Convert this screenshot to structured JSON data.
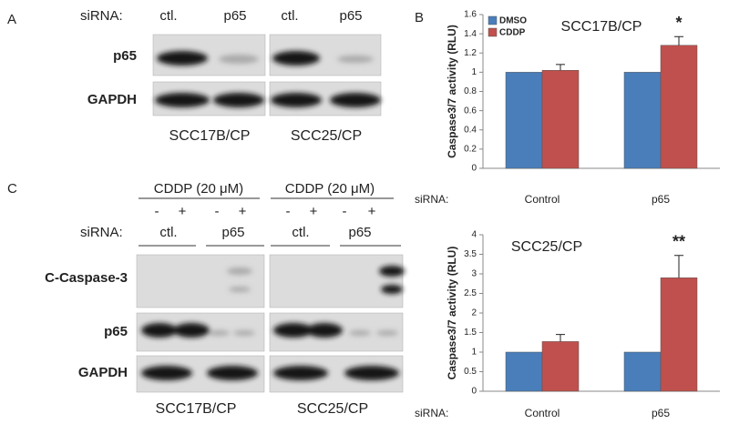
{
  "panel_a": {
    "label": "A",
    "sirna_label": "siRNA:",
    "lanes": [
      "ctl.",
      "p65",
      "ctl.",
      "p65"
    ],
    "rows": [
      "p65",
      "GAPDH"
    ],
    "cell_lines": [
      "SCC17B/CP",
      "SCC25/CP"
    ]
  },
  "panel_b": {
    "label": "B"
  },
  "panel_c": {
    "label": "C",
    "treatment": [
      "CDDP (20 μM)",
      "CDDP (20 μM)"
    ],
    "signs": [
      "-",
      "+",
      "-",
      "+",
      "-",
      "+",
      "-",
      "+"
    ],
    "sirna_label": "siRNA:",
    "lanes": [
      "ctl.",
      "p65",
      "ctl.",
      "p65"
    ],
    "rows": [
      "C-Caspase-3",
      "p65",
      "GAPDH"
    ],
    "cell_lines": [
      "SCC17B/CP",
      "SCC25/CP"
    ]
  },
  "chart_data": [
    {
      "type": "bar",
      "title": "SCC17B/CP",
      "ylabel": "Caspase3/7 activity (RLU)",
      "xlabel": "siRNA:",
      "categories": [
        "Control",
        "p65"
      ],
      "series": [
        {
          "name": "DMSO",
          "color": "#4a7ebb",
          "values": [
            1,
            1
          ]
        },
        {
          "name": "CDDP",
          "color": "#c0504d",
          "values": [
            1.02,
            1.28
          ],
          "errors": [
            0.06,
            0.09
          ]
        }
      ],
      "ylim": [
        0,
        1.6
      ],
      "yticks": [
        0,
        0.2,
        0.4,
        0.6,
        0.8,
        1,
        1.2,
        1.4,
        1.6
      ],
      "legend": "top-left",
      "annotation": "*"
    },
    {
      "type": "bar",
      "title": "SCC25/CP",
      "ylabel": "Caspase3/7 activity (RLU)",
      "xlabel": "siRNA:",
      "categories": [
        "Control",
        "p65"
      ],
      "series": [
        {
          "color": "#4a7ebb",
          "values": [
            1,
            1
          ]
        },
        {
          "color": "#c0504d",
          "values": [
            1.27,
            2.9
          ],
          "errors": [
            0.18,
            0.57
          ]
        }
      ],
      "ylim": [
        0,
        4
      ],
      "yticks": [
        0,
        0.5,
        1,
        1.5,
        2,
        2.5,
        3,
        3.5,
        4
      ],
      "annotation": "**"
    }
  ]
}
